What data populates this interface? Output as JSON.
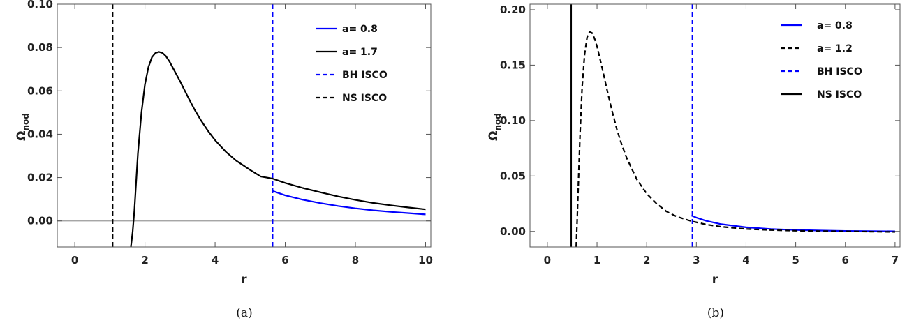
{
  "chart_data": [
    {
      "type": "line",
      "caption": "(a)",
      "xlabel": "r",
      "ylabel": "Ω",
      "ylabel_sub": "nod",
      "xlim": [
        -0.5,
        10.15
      ],
      "ylim": [
        -0.012,
        0.1
      ],
      "xticks": [
        0,
        2,
        4,
        6,
        8,
        10
      ],
      "xtick_labels": [
        "0",
        "2",
        "4",
        "6",
        "8",
        "10"
      ],
      "yticks": [
        0,
        0.02,
        0.04,
        0.06,
        0.08,
        0.1
      ],
      "ytick_labels": [
        "0.00",
        "0.02",
        "0.04",
        "0.06",
        "0.08",
        "0.10"
      ],
      "zero_line": true,
      "legend_position": "top-right",
      "series": [
        {
          "name": "a= 0.8",
          "color": "#0000ff",
          "dash": "solid",
          "x": [
            5.64,
            6.0,
            6.5,
            7.0,
            7.5,
            8.0,
            8.5,
            9.0,
            9.5,
            10.0
          ],
          "y": [
            0.0138,
            0.0118,
            0.0098,
            0.0082,
            0.0069,
            0.0058,
            0.0049,
            0.0042,
            0.0036,
            0.003
          ]
        },
        {
          "name": "a= 1.7",
          "color": "#000000",
          "dash": "solid",
          "x": [
            1.6,
            1.65,
            1.7,
            1.75,
            1.8,
            1.9,
            2.0,
            2.1,
            2.2,
            2.3,
            2.4,
            2.5,
            2.6,
            2.7,
            2.8,
            3.0,
            3.2,
            3.4,
            3.6,
            3.8,
            4.0,
            4.3,
            4.6,
            5.0,
            5.3,
            5.64,
            6.0,
            6.5,
            7.0,
            7.5,
            8.0,
            8.5,
            9.0,
            9.5,
            10.0
          ],
          "y": [
            -0.012,
            -0.005,
            0.005,
            0.018,
            0.031,
            0.05,
            0.063,
            0.071,
            0.0755,
            0.0775,
            0.078,
            0.0775,
            0.076,
            0.0735,
            0.0705,
            0.0645,
            0.058,
            0.0518,
            0.0463,
            0.0415,
            0.0372,
            0.032,
            0.0278,
            0.0235,
            0.0205,
            0.0195,
            0.0175,
            0.0152,
            0.0132,
            0.0113,
            0.0097,
            0.0083,
            0.0072,
            0.0062,
            0.0053
          ]
        },
        {
          "name": "BH ISCO",
          "color": "#0000ff",
          "dash": "dashed",
          "vertical": 5.64
        },
        {
          "name": "NS ISCO",
          "color": "#000000",
          "dash": "dashed",
          "vertical": 1.08
        }
      ]
    },
    {
      "type": "line",
      "caption": "(b)",
      "xlabel": "r",
      "ylabel": "Ω",
      "ylabel_sub": "nod",
      "xlim": [
        -0.35,
        7.1
      ],
      "ylim": [
        -0.014,
        0.205
      ],
      "xticks": [
        0,
        1,
        2,
        3,
        4,
        5,
        6,
        7
      ],
      "xtick_labels": [
        "0",
        "1",
        "2",
        "3",
        "4",
        "5",
        "6",
        "7"
      ],
      "yticks": [
        0,
        0.05,
        0.1,
        0.15,
        0.2
      ],
      "ytick_labels": [
        "0.00",
        "0.05",
        "0.10",
        "0.15",
        "0.20"
      ],
      "zero_line": false,
      "legend_position": "top-right",
      "series": [
        {
          "name": "a= 0.8",
          "color": "#0000ff",
          "dash": "solid",
          "x": [
            2.9,
            3.0,
            3.2,
            3.5,
            4.0,
            4.5,
            5.0,
            5.5,
            6.0,
            6.5,
            7.0
          ],
          "y": [
            0.0143,
            0.0125,
            0.0095,
            0.0065,
            0.0037,
            0.0022,
            0.0013,
            0.0008,
            0.0004,
            0.0002,
            0.0001
          ]
        },
        {
          "name": "a= 1.2",
          "color": "#000000",
          "dash": "dashed",
          "x": [
            0.58,
            0.6,
            0.63,
            0.66,
            0.7,
            0.75,
            0.8,
            0.85,
            0.9,
            0.95,
            1.0,
            1.1,
            1.2,
            1.3,
            1.4,
            1.5,
            1.6,
            1.8,
            2.0,
            2.2,
            2.4,
            2.6,
            2.9,
            3.2,
            3.5,
            4.0,
            4.5,
            5.0,
            5.5,
            6.0,
            6.5,
            7.0
          ],
          "y": [
            -0.014,
            0.01,
            0.05,
            0.09,
            0.13,
            0.16,
            0.175,
            0.18,
            0.179,
            0.174,
            0.167,
            0.148,
            0.128,
            0.109,
            0.092,
            0.078,
            0.066,
            0.047,
            0.034,
            0.025,
            0.018,
            0.0135,
            0.0092,
            0.0062,
            0.0042,
            0.0022,
            0.0012,
            0.0006,
            0.0003,
            0.0001,
            -0.0002,
            -0.0005
          ]
        },
        {
          "name": "BH ISCO",
          "color": "#0000ff",
          "dash": "dashed",
          "vertical": 2.92
        },
        {
          "name": "NS ISCO",
          "color": "#000000",
          "dash": "solid",
          "vertical": 0.48
        }
      ]
    }
  ]
}
